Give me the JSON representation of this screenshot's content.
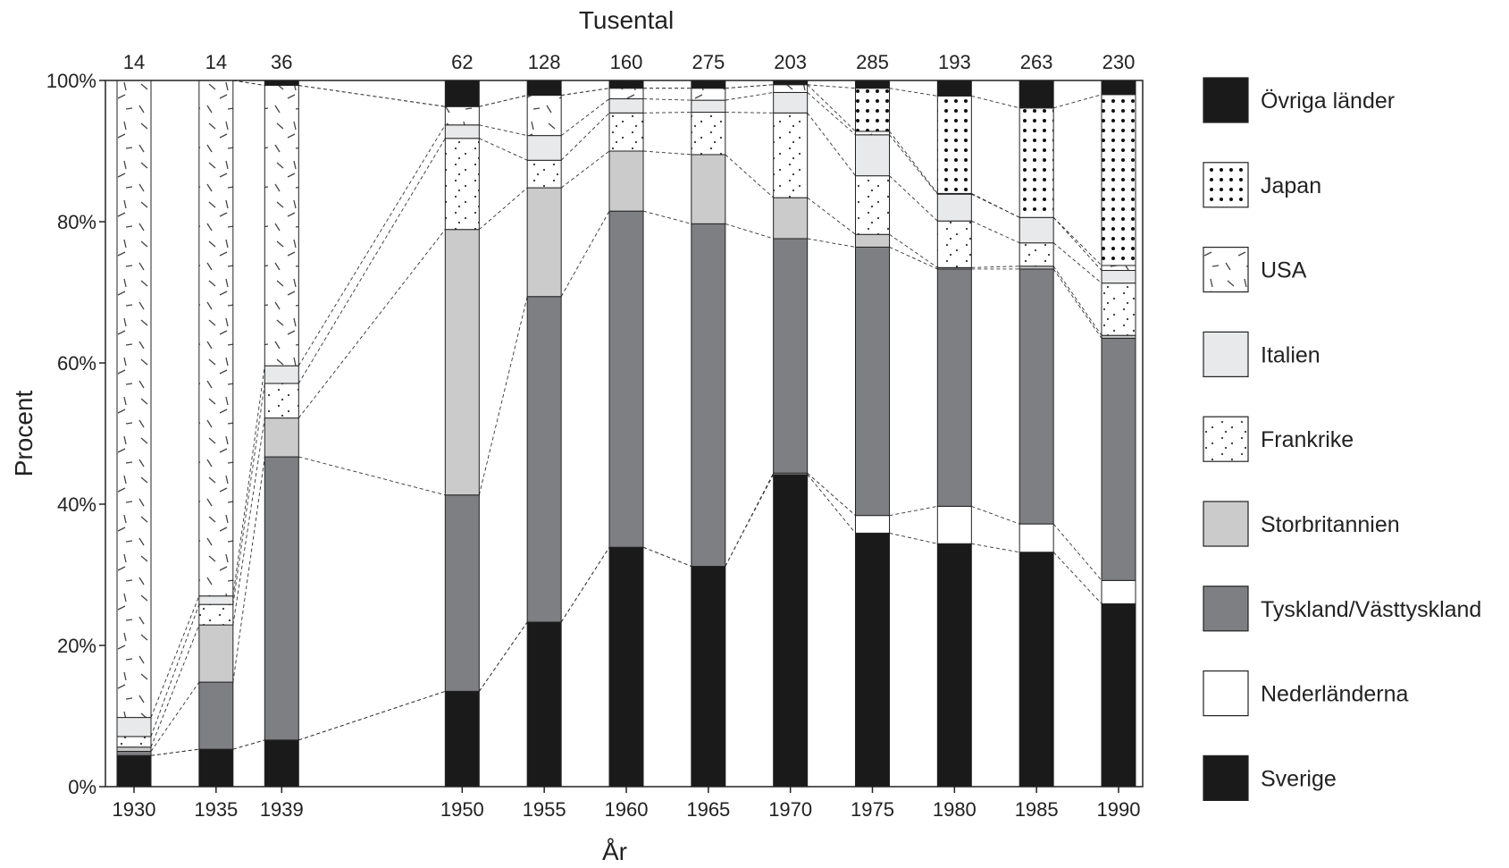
{
  "chart_data": {
    "type": "bar",
    "stacked": true,
    "top_label": "Tusental",
    "xlabel": "År",
    "ylabel": "Procent",
    "ylim": [
      0,
      100
    ],
    "y_ticks": [
      "0%",
      "20%",
      "40%",
      "60%",
      "80%",
      "100%"
    ],
    "categories": [
      "1930",
      "1935",
      "1939",
      "1950",
      "1955",
      "1960",
      "1965",
      "1970",
      "1975",
      "1980",
      "1985",
      "1990"
    ],
    "totals_thousands": [
      "14",
      "14",
      "36",
      "62",
      "128",
      "160",
      "275",
      "203",
      "285",
      "193",
      "263",
      "230"
    ],
    "grid": false,
    "legend_position": "right",
    "connector_lines": true,
    "series": [
      {
        "name": "Sverige",
        "pattern": "black",
        "values": [
          4.4,
          5.3,
          6.6,
          13.5,
          23.3,
          33.9,
          31.2,
          44.2,
          35.9,
          34.4,
          33.2,
          25.9
        ]
      },
      {
        "name": "Nederländerna",
        "pattern": "white",
        "values": [
          0.0,
          0.0,
          0.0,
          0.0,
          0.0,
          0.0,
          0.0,
          0.2,
          2.5,
          5.3,
          4.0,
          3.3
        ]
      },
      {
        "name": "Tyskland/Västtyskland",
        "pattern": "dark-gray",
        "values": [
          0.6,
          9.5,
          40.1,
          27.8,
          46.1,
          47.6,
          48.5,
          33.2,
          38.0,
          33.6,
          36.1,
          34.3
        ]
      },
      {
        "name": "Storbritannien",
        "pattern": "light-gray",
        "values": [
          0.6,
          8.1,
          5.5,
          37.6,
          15.4,
          8.5,
          9.8,
          5.8,
          1.8,
          0.2,
          0.4,
          0.4
        ]
      },
      {
        "name": "Frankrike",
        "pattern": "dots-sparse",
        "values": [
          1.5,
          2.9,
          4.9,
          12.9,
          3.9,
          5.4,
          6.0,
          12.0,
          8.3,
          6.6,
          3.3,
          7.4
        ]
      },
      {
        "name": "Italien",
        "pattern": "very-light-gray",
        "values": [
          2.7,
          1.2,
          2.5,
          1.9,
          3.5,
          2.0,
          1.7,
          2.9,
          5.8,
          3.8,
          3.6,
          1.8
        ]
      },
      {
        "name": "USA",
        "pattern": "dashes",
        "values": [
          90.2,
          73.0,
          39.7,
          2.6,
          5.7,
          1.5,
          1.7,
          1.1,
          0.5,
          0.1,
          0.0,
          0.7
        ]
      },
      {
        "name": "Japan",
        "pattern": "dots-dense",
        "values": [
          0.0,
          0.0,
          0.0,
          0.0,
          0.0,
          0.0,
          0.0,
          0.0,
          6.1,
          13.8,
          15.5,
          24.2
        ]
      },
      {
        "name": "Övriga länder",
        "pattern": "black",
        "values": [
          0.0,
          0.0,
          0.7,
          3.7,
          2.1,
          1.1,
          1.1,
          0.6,
          1.1,
          2.2,
          3.9,
          2.0
        ]
      }
    ],
    "legend_order": [
      "Övriga länder",
      "Japan",
      "USA",
      "Italien",
      "Frankrike",
      "Storbritannien",
      "Tyskland/Västtyskland",
      "Nederländerna",
      "Sverige"
    ]
  }
}
